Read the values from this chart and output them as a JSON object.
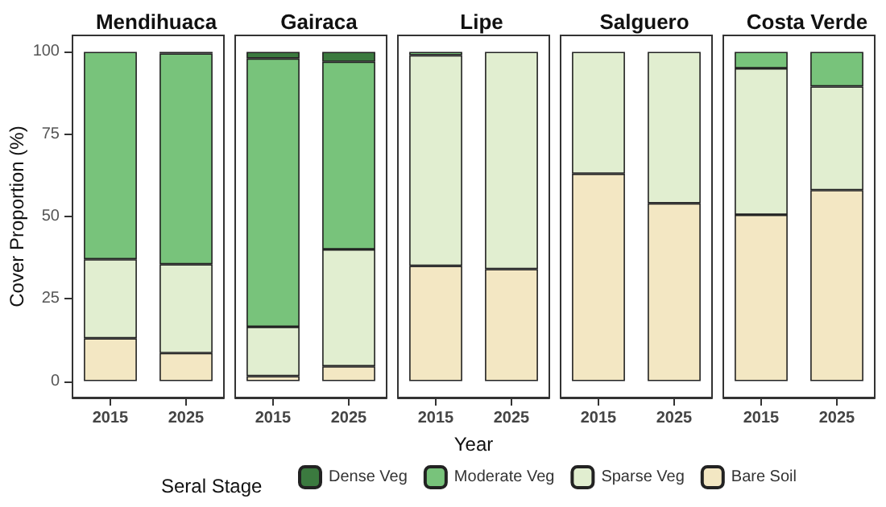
{
  "chart_data": [
    {
      "type": "bar",
      "stacked": true,
      "title": "Mendihuaca",
      "ylabel": "Cover Proportion (%)",
      "legend": "bottom",
      "legend_title": "Seral Stage",
      "categories": [
        "2015",
        "2025"
      ],
      "ylim": [
        -5,
        105
      ],
      "yticks": [
        0,
        25,
        50,
        75,
        100
      ],
      "grid": false,
      "series": [
        {
          "name": "Bare Soil",
          "color": "#f3e7c3",
          "values": [
            13,
            8.5
          ]
        },
        {
          "name": "Sparse Veg",
          "color": "#e1eed0",
          "values": [
            24,
            27
          ]
        },
        {
          "name": "Moderate Veg",
          "color": "#78c37b",
          "values": [
            63,
            64
          ]
        },
        {
          "name": "Dense Veg",
          "color": "#3b7a3f",
          "values": [
            0,
            0.5
          ]
        }
      ]
    },
    {
      "type": "bar",
      "stacked": true,
      "title": "Gairaca",
      "legend": "bottom",
      "categories": [
        "2015",
        "2025"
      ],
      "ylim": [
        -5,
        105
      ],
      "tick_labels": "x",
      "grid": false,
      "series": [
        {
          "name": "Bare Soil",
          "color": "#f3e7c3",
          "values": [
            1.5,
            4.5
          ]
        },
        {
          "name": "Sparse Veg",
          "color": "#e1eed0",
          "values": [
            15,
            35.5
          ]
        },
        {
          "name": "Moderate Veg",
          "color": "#78c37b",
          "values": [
            81.5,
            57
          ]
        },
        {
          "name": "Dense Veg",
          "color": "#3b7a3f",
          "values": [
            2,
            3
          ]
        }
      ]
    },
    {
      "type": "bar",
      "stacked": true,
      "title": "Lipe",
      "xlabel": "Year",
      "legend": "bottom",
      "categories": [
        "2015",
        "2025"
      ],
      "ylim": [
        -5,
        105
      ],
      "tick_labels": "x",
      "grid": false,
      "series": [
        {
          "name": "Bare Soil",
          "color": "#f3e7c3",
          "values": [
            35,
            34
          ]
        },
        {
          "name": "Sparse Veg",
          "color": "#e1eed0",
          "values": [
            64,
            66
          ]
        },
        {
          "name": "Moderate Veg",
          "color": "#78c37b",
          "values": [
            1,
            0
          ]
        },
        {
          "name": "Dense Veg",
          "color": "#3b7a3f",
          "values": [
            0,
            0
          ]
        }
      ]
    },
    {
      "type": "bar",
      "stacked": true,
      "title": "Salguero",
      "legend": "bottom",
      "categories": [
        "2015",
        "2025"
      ],
      "ylim": [
        -5,
        105
      ],
      "tick_labels": "x",
      "grid": false,
      "series": [
        {
          "name": "Bare Soil",
          "color": "#f3e7c3",
          "values": [
            63,
            54
          ]
        },
        {
          "name": "Sparse Veg",
          "color": "#e1eed0",
          "values": [
            37,
            46
          ]
        },
        {
          "name": "Moderate Veg",
          "color": "#78c37b",
          "values": [
            0,
            0
          ]
        },
        {
          "name": "Dense Veg",
          "color": "#3b7a3f",
          "values": [
            0,
            0
          ]
        }
      ]
    },
    {
      "type": "bar",
      "stacked": true,
      "title": "Costa Verde",
      "legend": "bottom",
      "categories": [
        "2015",
        "2025"
      ],
      "ylim": [
        -5,
        105
      ],
      "tick_labels": "x",
      "grid": false,
      "series": [
        {
          "name": "Bare Soil",
          "color": "#f3e7c3",
          "values": [
            50.5,
            58
          ]
        },
        {
          "name": "Sparse Veg",
          "color": "#e1eed0",
          "values": [
            44.5,
            31.5
          ]
        },
        {
          "name": "Moderate Veg",
          "color": "#78c37b",
          "values": [
            5,
            10.5
          ]
        },
        {
          "name": "Dense Veg",
          "color": "#3b7a3f",
          "values": [
            0,
            0
          ]
        }
      ]
    }
  ]
}
